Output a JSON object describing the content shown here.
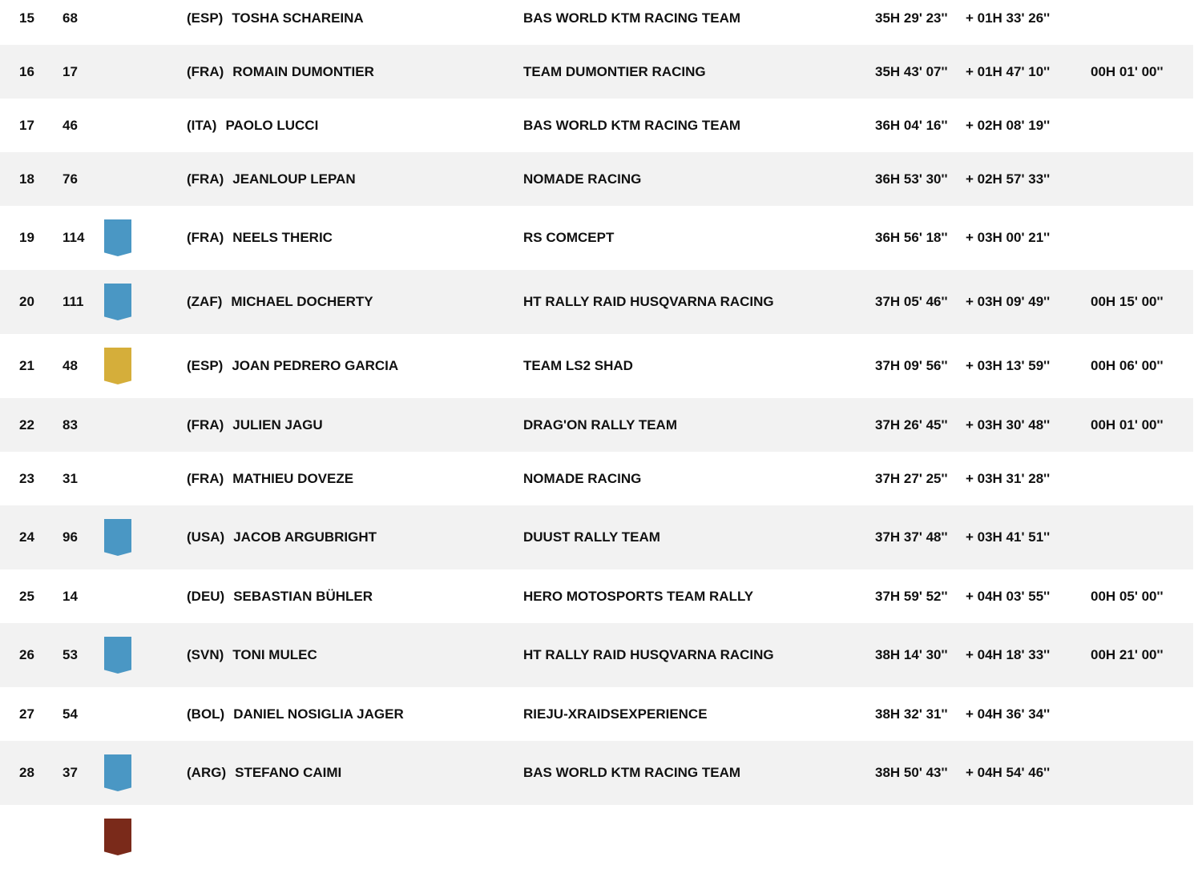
{
  "colors": {
    "badge_blue": "#4a97c4",
    "badge_yellow": "#d5ae3a",
    "badge_brown": "#7a2a1a",
    "alt_row": "#f2f2f2"
  },
  "rows": [
    {
      "pos": "15",
      "num": "68",
      "badge": null,
      "nat": "(ESP)",
      "name": "TOSHA SCHAREINA",
      "team": "BAS WORLD KTM RACING TEAM",
      "time": "35H 29' 23''",
      "gap": "+ 01H 33' 26''",
      "penalty": ""
    },
    {
      "pos": "16",
      "num": "17",
      "badge": null,
      "nat": "(FRA)",
      "name": "ROMAIN DUMONTIER",
      "team": "TEAM DUMONTIER RACING",
      "time": "35H 43' 07''",
      "gap": "+ 01H 47' 10''",
      "penalty": "00H 01' 00''"
    },
    {
      "pos": "17",
      "num": "46",
      "badge": null,
      "nat": "(ITA)",
      "name": "PAOLO LUCCI",
      "team": "BAS WORLD KTM RACING TEAM",
      "time": "36H 04' 16''",
      "gap": "+ 02H 08' 19''",
      "penalty": ""
    },
    {
      "pos": "18",
      "num": "76",
      "badge": null,
      "nat": "(FRA)",
      "name": "JEANLOUP LEPAN",
      "team": "NOMADE RACING",
      "time": "36H 53' 30''",
      "gap": "+ 02H 57' 33''",
      "penalty": ""
    },
    {
      "pos": "19",
      "num": "114",
      "badge": "blue",
      "nat": "(FRA)",
      "name": "NEELS THERIC",
      "team": "RS COMCEPT",
      "time": "36H 56' 18''",
      "gap": "+ 03H 00' 21''",
      "penalty": ""
    },
    {
      "pos": "20",
      "num": "111",
      "badge": "blue",
      "nat": "(ZAF)",
      "name": "MICHAEL DOCHERTY",
      "team": "HT RALLY RAID HUSQVARNA RACING",
      "time": "37H 05' 46''",
      "gap": "+ 03H 09' 49''",
      "penalty": "00H 15' 00''"
    },
    {
      "pos": "21",
      "num": "48",
      "badge": "yellow",
      "nat": "(ESP)",
      "name": "JOAN PEDRERO GARCIA",
      "team": "TEAM LS2 SHAD",
      "time": "37H 09' 56''",
      "gap": "+ 03H 13' 59''",
      "penalty": "00H 06' 00''"
    },
    {
      "pos": "22",
      "num": "83",
      "badge": null,
      "nat": "(FRA)",
      "name": "JULIEN JAGU",
      "team": "DRAG'ON RALLY TEAM",
      "time": "37H 26' 45''",
      "gap": "+ 03H 30' 48''",
      "penalty": "00H 01' 00''"
    },
    {
      "pos": "23",
      "num": "31",
      "badge": null,
      "nat": "(FRA)",
      "name": "MATHIEU DOVEZE",
      "team": "NOMADE RACING",
      "time": "37H 27' 25''",
      "gap": "+ 03H 31' 28''",
      "penalty": ""
    },
    {
      "pos": "24",
      "num": "96",
      "badge": "blue",
      "nat": "(USA)",
      "name": "JACOB ARGUBRIGHT",
      "team": "DUUST RALLY TEAM",
      "time": "37H 37' 48''",
      "gap": "+ 03H 41' 51''",
      "penalty": ""
    },
    {
      "pos": "25",
      "num": "14",
      "badge": null,
      "nat": "(DEU)",
      "name": "SEBASTIAN BÜHLER",
      "team": "HERO MOTOSPORTS TEAM RALLY",
      "time": "37H 59' 52''",
      "gap": "+ 04H 03' 55''",
      "penalty": "00H 05' 00''"
    },
    {
      "pos": "26",
      "num": "53",
      "badge": "blue",
      "nat": "(SVN)",
      "name": "TONI MULEC",
      "team": "HT RALLY RAID HUSQVARNA RACING",
      "time": "38H 14' 30''",
      "gap": "+ 04H 18' 33''",
      "penalty": "00H 21' 00''"
    },
    {
      "pos": "27",
      "num": "54",
      "badge": null,
      "nat": "(BOL)",
      "name": "DANIEL NOSIGLIA JAGER",
      "team": "RIEJU-XRAIDSEXPERIENCE",
      "time": "38H 32' 31''",
      "gap": "+ 04H 36' 34''",
      "penalty": ""
    },
    {
      "pos": "28",
      "num": "37",
      "badge": "blue",
      "nat": "(ARG)",
      "name": "STEFANO CAIMI",
      "team": "BAS WORLD KTM RACING TEAM",
      "time": "38H 50' 43''",
      "gap": "+ 04H 54' 46''",
      "penalty": ""
    },
    {
      "pos": "",
      "num": "",
      "badge": "brown",
      "nat": "",
      "name": "",
      "team": "",
      "time": "",
      "gap": "",
      "penalty": ""
    }
  ]
}
